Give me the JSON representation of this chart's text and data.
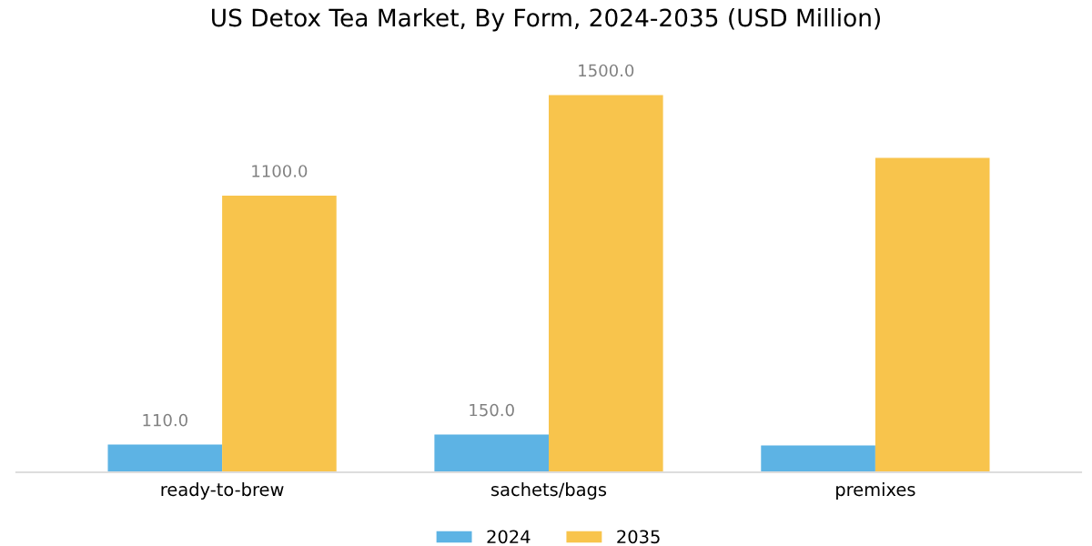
{
  "chart_data": {
    "type": "bar",
    "title": "US Detox Tea Market, By Form, 2024-2035 (USD Million)",
    "categories": [
      "ready-to-brew",
      "sachets/bags",
      "premixes"
    ],
    "series": [
      {
        "name": "2024",
        "color": "#5db3e4",
        "values": [
          110,
          150,
          107
        ],
        "value_labels": [
          "110.0",
          "150.0",
          null
        ]
      },
      {
        "name": "2035",
        "color": "#f8c44c",
        "values": [
          1100,
          1500,
          1250
        ],
        "value_labels": [
          "1100.0",
          "1500.0",
          null
        ]
      }
    ],
    "legend": "bottom",
    "grid": false
  }
}
